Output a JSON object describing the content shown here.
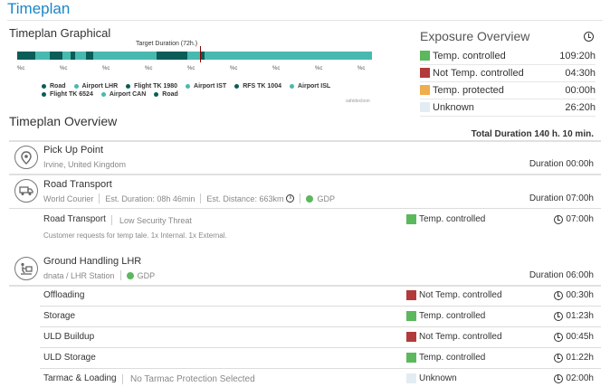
{
  "page": {
    "title": "Timeplan"
  },
  "graph": {
    "title": "Timeplan Graphical",
    "target_label": "Target Duration (72h.)",
    "segments": [
      {
        "color": "#0b5d57",
        "hours": 7
      },
      {
        "color": "#49b9b0",
        "hours": 6
      },
      {
        "color": "#0b5d57",
        "hours": 5
      },
      {
        "color": "#49b9b0",
        "hours": 3
      },
      {
        "color": "#0b5d57",
        "hours": 2
      },
      {
        "color": "#49b9b0",
        "hours": 4
      },
      {
        "color": "#0b5d57",
        "hours": 3
      },
      {
        "color": "#49b9b0",
        "hours": 25
      },
      {
        "color": "#0b5d57",
        "hours": 12
      },
      {
        "color": "#49b9b0",
        "hours": 5
      },
      {
        "color": "#0b5d57",
        "hours": 2
      },
      {
        "color": "#49b9b0",
        "hours": 66
      }
    ],
    "tick_labels": [
      "%c",
      "%c",
      "%c",
      "%c",
      "%c",
      "%c",
      "%c",
      "%c",
      "%c"
    ],
    "legend": [
      {
        "label": "Road",
        "color": "#0b5d57"
      },
      {
        "label": "Airport LHR",
        "color": "#49b9b0"
      },
      {
        "label": "Flight TK 1980",
        "color": "#0b5d57"
      },
      {
        "label": "Airport IST",
        "color": "#49b9b0"
      },
      {
        "label": "RFS TK 1004",
        "color": "#0b5d57"
      },
      {
        "label": "Airport ISL",
        "color": "#49b9b0"
      },
      {
        "label": "Flight TK 6524",
        "color": "#0b5d57"
      },
      {
        "label": "Airport CAN",
        "color": "#49b9b0"
      },
      {
        "label": "Road",
        "color": "#0b5d57"
      }
    ],
    "watermark": "sahidecloon"
  },
  "exposure": {
    "title": "Exposure Overview",
    "rows": [
      {
        "label": "Temp. controlled",
        "value": "109:20h",
        "color": "#5cb85c"
      },
      {
        "label": "Not Temp. controlled",
        "value": "04:30h",
        "color": "#b33a3a"
      },
      {
        "label": "Temp. protected",
        "value": "00:00h",
        "color": "#f0ad4e"
      },
      {
        "label": "Unknown",
        "value": "26:20h",
        "color": "#e3ecf3"
      }
    ]
  },
  "overview": {
    "title": "Timeplan Overview",
    "total": "Total Duration 140 h. 10 min.",
    "pickup": {
      "title": "Pick Up Point",
      "location": "Irvine, United Kingdom",
      "duration": "Duration 00:00h"
    },
    "road": {
      "title": "Road Transport",
      "carrier": "World Courier",
      "est_duration": "Est. Duration: 08h 46min",
      "est_distance": "Est. Distance: 663km",
      "gdp": "GDP",
      "duration": "Duration 07:00h"
    },
    "road_detail": {
      "label": "Road Transport",
      "risk": "Low Security Threat",
      "status": "Temp. controlled",
      "status_color": "#5cb85c",
      "time": "07:00h",
      "note": "Customer requests for temp tale. 1x Internal. 1x External."
    },
    "handling": {
      "title": "Ground Handling LHR",
      "station": "dnata / LHR Station",
      "gdp": "GDP",
      "duration": "Duration 06:00h"
    },
    "activities": [
      {
        "label": "Offloading",
        "sub": "",
        "status": "Not Temp. controlled",
        "color": "#b33a3a",
        "time": "00:30h"
      },
      {
        "label": "Storage",
        "sub": "",
        "status": "Temp. controlled",
        "color": "#5cb85c",
        "time": "01:23h"
      },
      {
        "label": "ULD Buildup",
        "sub": "",
        "status": "Not Temp. controlled",
        "color": "#b33a3a",
        "time": "00:45h"
      },
      {
        "label": "ULD Storage",
        "sub": "",
        "status": "Temp. controlled",
        "color": "#5cb85c",
        "time": "01:22h"
      },
      {
        "label": "Tarmac & Loading",
        "sub": "No Tarmac Protection Selected",
        "status": "Unknown",
        "color": "#e3ecf3",
        "time": "02:00h"
      }
    ]
  }
}
